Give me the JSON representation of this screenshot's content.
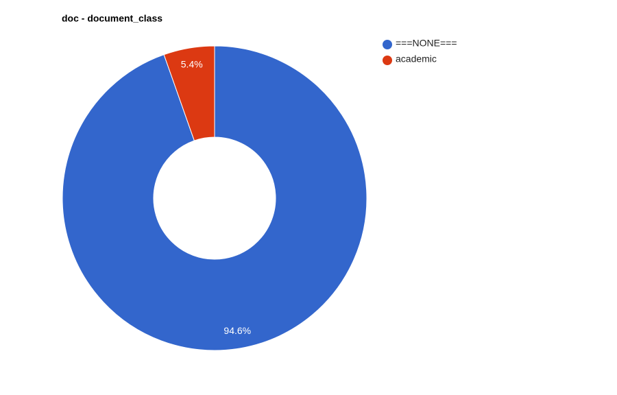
{
  "chart_data": {
    "type": "donut",
    "title": "doc - document_class",
    "categories": [
      "===NONE===",
      "academic"
    ],
    "values": [
      94.6,
      5.4
    ],
    "value_labels": [
      "94.6%",
      "5.4%"
    ],
    "colors": [
      "#3366cc",
      "#dc3912"
    ],
    "legend": "right"
  }
}
